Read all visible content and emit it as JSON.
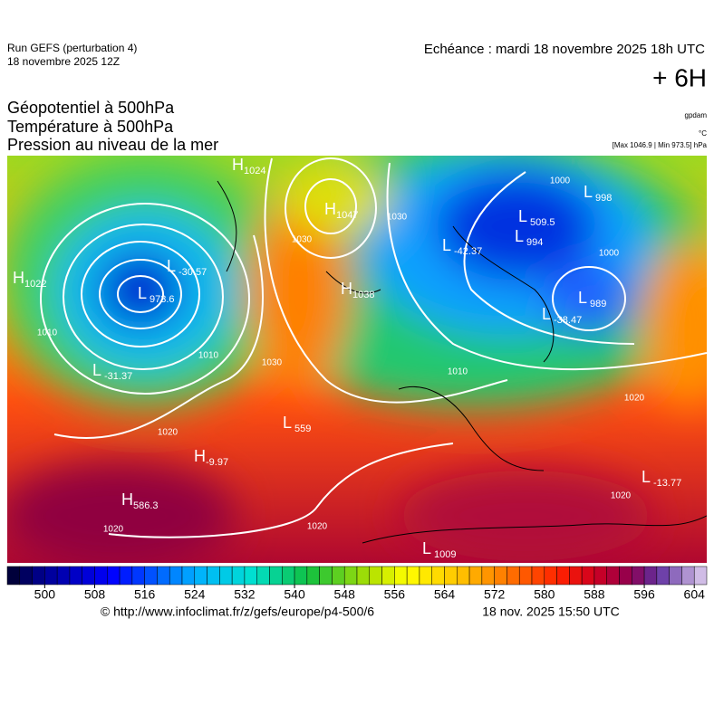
{
  "header": {
    "run": "Run GEFS (perturbation 4)",
    "date": "18 novembre 2025 12Z",
    "echeance": "Echéance : mardi 18 novembre 2025 18h UTC",
    "lead": "+ 6H",
    "titles": [
      "Géopotentiel à 500hPa",
      "Température à 500hPa",
      "Pression au niveau de la mer"
    ],
    "units": [
      "gpdam",
      "°C",
      "[Max 1046.9 | Min 973.5] hPa"
    ]
  },
  "map": {
    "centers": [
      {
        "kind": "H",
        "value": 1022
      },
      {
        "kind": "L",
        "value": 973.6
      },
      {
        "kind": "H",
        "value": 1047
      },
      {
        "kind": "L",
        "value": 509.5
      },
      {
        "kind": "L",
        "value": 994
      },
      {
        "kind": "L",
        "value": -42.37
      },
      {
        "kind": "L",
        "value": 998
      },
      {
        "kind": "L",
        "value": 989
      },
      {
        "kind": "L",
        "value": -38.47
      },
      {
        "kind": "H",
        "value": 1038
      },
      {
        "kind": "L",
        "value": 559
      },
      {
        "kind": "H",
        "value": -9.97
      },
      {
        "kind": "H",
        "value": 586.3
      },
      {
        "kind": "L",
        "value": 1009
      },
      {
        "kind": "L",
        "value": -13.77
      },
      {
        "kind": "L",
        "value": -31.37
      },
      {
        "kind": "L",
        "value": -30.57
      },
      {
        "kind": "H",
        "value": 1024
      }
    ],
    "contour_labels": [
      1030,
      1030,
      1020,
      1020,
      1020,
      1010,
      1000,
      1020,
      1020,
      1030,
      1000,
      1010,
      1010
    ]
  },
  "colorbar": {
    "limits": [
      494,
      606
    ],
    "ticks": [
      500,
      508,
      516,
      524,
      532,
      540,
      548,
      556,
      564,
      572,
      580,
      588,
      596,
      604
    ]
  },
  "footer": {
    "source": "© http://www.infoclimat.fr/z/gefs/europe/p4-500/6",
    "generated": "18 nov. 2025 15:50 UTC"
  }
}
